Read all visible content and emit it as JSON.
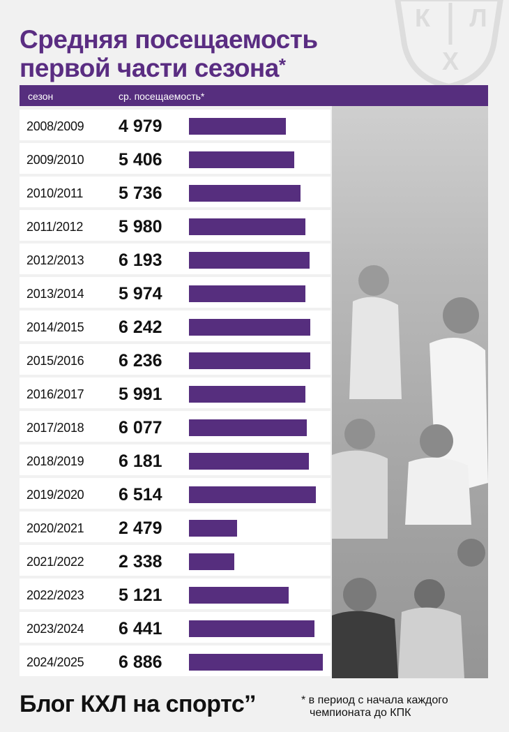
{
  "title": {
    "line1": "Средняя посещаемость",
    "line2": "первой части сезона",
    "asterisk": "*"
  },
  "logo": {
    "letters": [
      "К",
      "Х",
      "Л"
    ]
  },
  "chart_data": {
    "type": "bar",
    "orientation": "horizontal",
    "title": "Средняя посещаемость первой части сезона*",
    "column_headers": {
      "season": "сезон",
      "attendance": "ср. посещаемость*"
    },
    "categories": [
      "2008/2009",
      "2009/2010",
      "2010/2011",
      "2011/2012",
      "2012/2013",
      "2013/2014",
      "2014/2015",
      "2015/2016",
      "2016/2017",
      "2017/2018",
      "2018/2019",
      "2019/2020",
      "2020/2021",
      "2021/2022",
      "2022/2023",
      "2023/2024",
      "2024/2025"
    ],
    "values": [
      4979,
      5406,
      5736,
      5980,
      6193,
      5974,
      6242,
      6236,
      5991,
      6077,
      6181,
      6514,
      2479,
      2338,
      5121,
      6441,
      6886
    ],
    "value_labels": [
      "4 979",
      "5 406",
      "5 736",
      "5 980",
      "6 193",
      "5 974",
      "6 242",
      "6 236",
      "5 991",
      "6 077",
      "6 181",
      "6 514",
      "2 479",
      "2 338",
      "5 121",
      "6 441",
      "6 886"
    ],
    "xlim": [
      0,
      6886
    ],
    "bar_color": "#562e7e"
  },
  "footer": {
    "blog": "Блог КХЛ на спортс’’",
    "note_line1": "* в период с начала каждого",
    "note_line2": "чемпионата до КПК"
  }
}
